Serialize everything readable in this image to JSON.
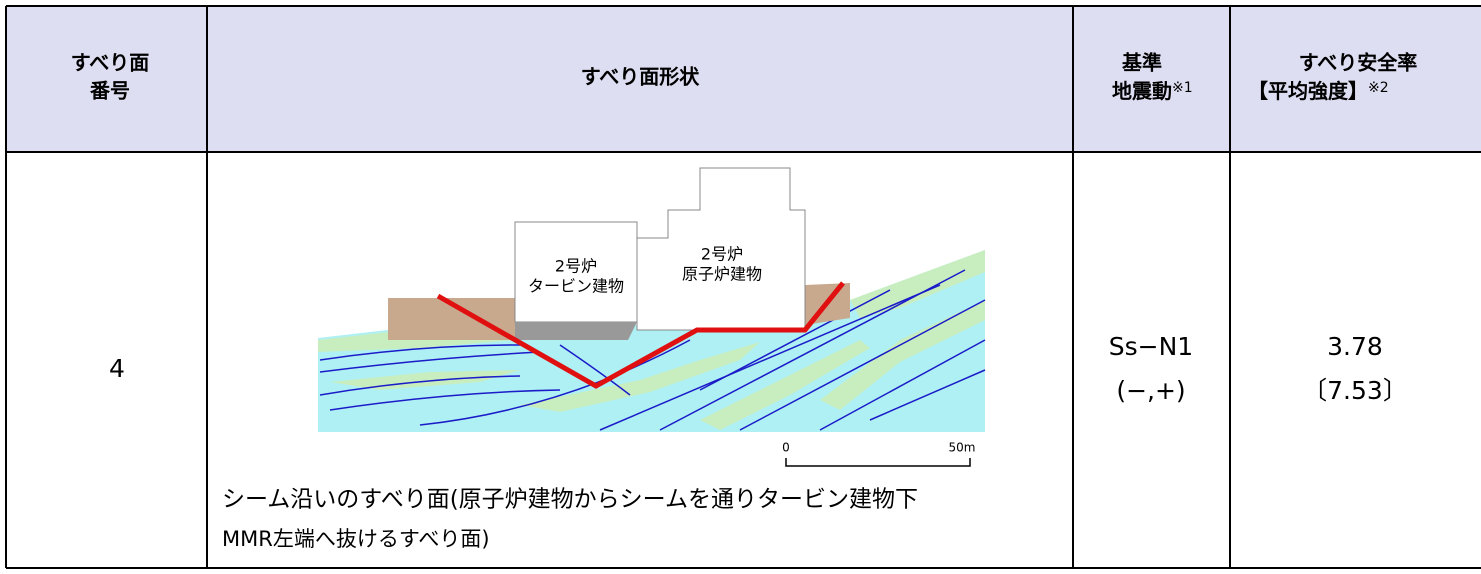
{
  "table": {
    "header": {
      "number": [
        "すべり面",
        "番号"
      ],
      "shape": "すべり面形状",
      "ground_motion": [
        "基準",
        "地震動"
      ],
      "ground_motion_note": "※1",
      "safety_factor": [
        "すべり安全率",
        "【平均強度】"
      ],
      "safety_factor_note": "※2"
    },
    "rows": [
      {
        "number": "4",
        "diagram": {
          "turbine_building": [
            "2号炉",
            "タービン建物"
          ],
          "reactor_building": [
            "2号炉",
            "原子炉建物"
          ],
          "scale_start": "0",
          "scale_end": "50m"
        },
        "caption": [
          "シーム沿いのすべり面(原子炉建物からシームを通りタービン建物下",
          "MMR左端へ抜けるすべり面)"
        ],
        "ground_motion": [
          "Ss−N1",
          "(−,+)"
        ],
        "safety_factor": [
          "3.78",
          "〔7.53〕"
        ]
      }
    ]
  }
}
